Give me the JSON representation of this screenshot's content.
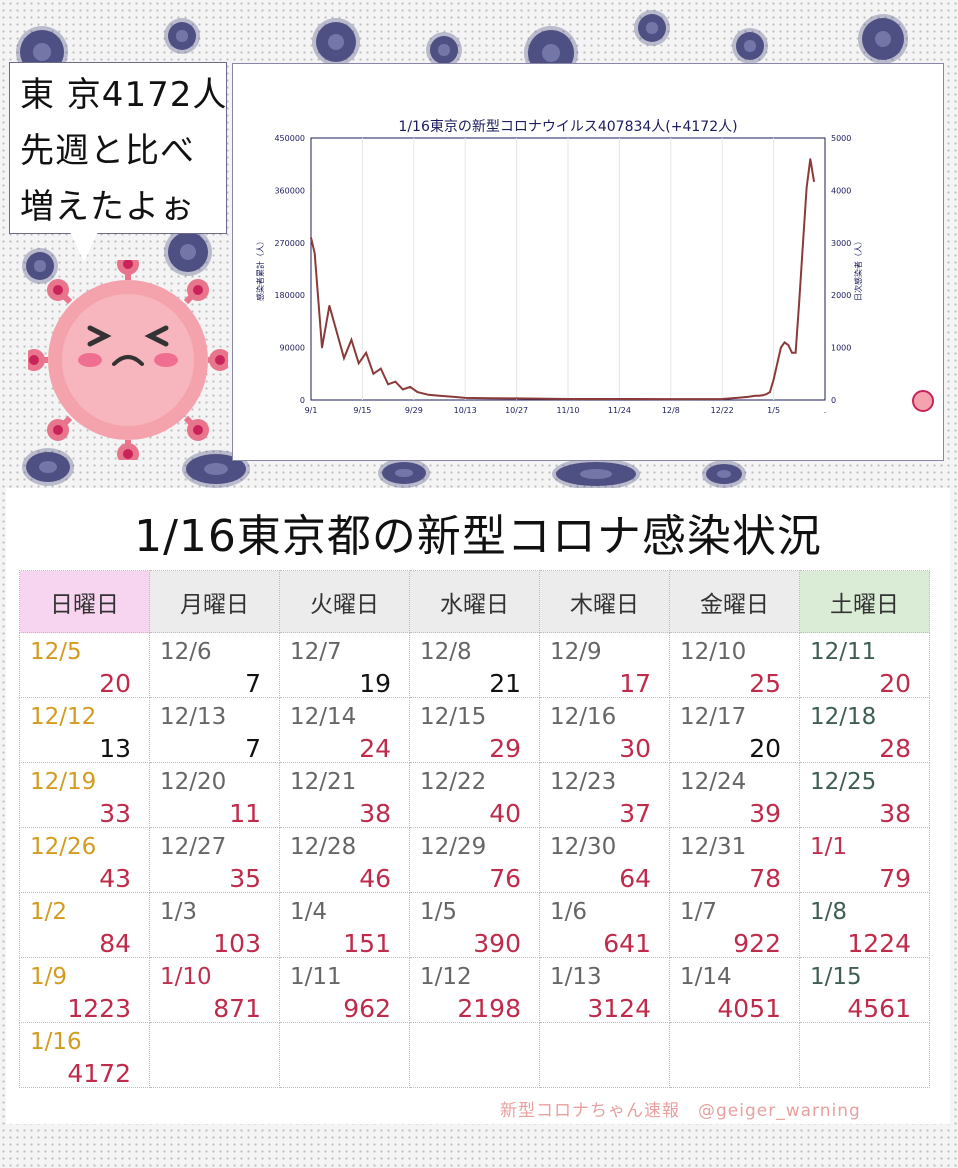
{
  "bubble": {
    "text": "東 京4172人\n先週と比べ\n増えたよぉ"
  },
  "chart_data": {
    "type": "line",
    "title": "1/16東京の新型コロナウイルス407834人(+4172人)",
    "ylabel_left": "感染者累計（人）",
    "ylabel_right": "日次感染者（人）",
    "left_ticks": [
      "0",
      "90000",
      "180000",
      "270000",
      "360000",
      "450000"
    ],
    "right_ticks": [
      "0",
      "1000",
      "2000",
      "3000",
      "4000",
      "5000"
    ],
    "x_ticks": [
      "9/1",
      "9/15",
      "9/29",
      "10/13",
      "10/27",
      "11/10",
      "11/24",
      "12/8",
      "12/22",
      "1/5",
      "."
    ],
    "ylim_right": [
      0,
      5000
    ],
    "series": [
      {
        "x": [
          "9/1",
          "9/2",
          "9/4",
          "9/6",
          "9/8",
          "9/10",
          "9/12",
          "9/14",
          "9/16",
          "9/18",
          "9/20",
          "9/22",
          "9/24",
          "9/26",
          "9/28",
          "9/30",
          "10/3",
          "10/6",
          "10/10",
          "10/13",
          "10/20",
          "10/27",
          "11/10",
          "11/24",
          "12/8",
          "12/22",
          "12/26",
          "12/29",
          "12/31",
          "1/1",
          "1/2",
          "1/3",
          "1/4",
          "1/5",
          "1/6",
          "1/7",
          "1/8",
          "1/9",
          "1/10",
          "1/11",
          "1/12",
          "1/13",
          "1/14",
          "1/15",
          "1/16"
        ],
        "y": [
          3100,
          2800,
          1000,
          1800,
          1300,
          800,
          1150,
          700,
          900,
          500,
          600,
          300,
          350,
          200,
          250,
          150,
          100,
          80,
          60,
          40,
          35,
          30,
          20,
          20,
          18,
          20,
          40,
          60,
          80,
          80,
          90,
          110,
          150,
          390,
          700,
          1000,
          1100,
          1050,
          900,
          900,
          1900,
          3000,
          4050,
          4600,
          4172
        ]
      }
    ]
  },
  "table": {
    "title": "1/16東京都の新型コロナ感染状況",
    "headers": [
      "日曜日",
      "月曜日",
      "火曜日",
      "水曜日",
      "木曜日",
      "金曜日",
      "土曜日"
    ],
    "rows": [
      [
        {
          "d": "12/5",
          "n": "20"
        },
        {
          "d": "12/6",
          "n": "7"
        },
        {
          "d": "12/7",
          "n": "19"
        },
        {
          "d": "12/8",
          "n": "21"
        },
        {
          "d": "12/9",
          "n": "17"
        },
        {
          "d": "12/10",
          "n": "25"
        },
        {
          "d": "12/11",
          "n": "20"
        }
      ],
      [
        {
          "d": "12/12",
          "n": "13"
        },
        {
          "d": "12/13",
          "n": "7"
        },
        {
          "d": "12/14",
          "n": "24"
        },
        {
          "d": "12/15",
          "n": "29"
        },
        {
          "d": "12/16",
          "n": "30"
        },
        {
          "d": "12/17",
          "n": "20"
        },
        {
          "d": "12/18",
          "n": "28"
        }
      ],
      [
        {
          "d": "12/19",
          "n": "33"
        },
        {
          "d": "12/20",
          "n": "11"
        },
        {
          "d": "12/21",
          "n": "38"
        },
        {
          "d": "12/22",
          "n": "40"
        },
        {
          "d": "12/23",
          "n": "37"
        },
        {
          "d": "12/24",
          "n": "39"
        },
        {
          "d": "12/25",
          "n": "38"
        }
      ],
      [
        {
          "d": "12/26",
          "n": "43"
        },
        {
          "d": "12/27",
          "n": "35"
        },
        {
          "d": "12/28",
          "n": "46"
        },
        {
          "d": "12/29",
          "n": "76"
        },
        {
          "d": "12/30",
          "n": "64"
        },
        {
          "d": "12/31",
          "n": "78"
        },
        {
          "d": "1/1",
          "n": "79"
        }
      ],
      [
        {
          "d": "1/2",
          "n": "84"
        },
        {
          "d": "1/3",
          "n": "103"
        },
        {
          "d": "1/4",
          "n": "151"
        },
        {
          "d": "1/5",
          "n": "390"
        },
        {
          "d": "1/6",
          "n": "641"
        },
        {
          "d": "1/7",
          "n": "922"
        },
        {
          "d": "1/8",
          "n": "1224"
        }
      ],
      [
        {
          "d": "1/9",
          "n": "1223"
        },
        {
          "d": "1/10",
          "n": "871"
        },
        {
          "d": "1/11",
          "n": "962"
        },
        {
          "d": "1/12",
          "n": "2198"
        },
        {
          "d": "1/13",
          "n": "3124"
        },
        {
          "d": "1/14",
          "n": "4051"
        },
        {
          "d": "1/15",
          "n": "4561"
        }
      ],
      [
        {
          "d": "1/16",
          "n": "4172"
        },
        {
          "d": "",
          "n": ""
        },
        {
          "d": "",
          "n": ""
        },
        {
          "d": "",
          "n": ""
        },
        {
          "d": "",
          "n": ""
        },
        {
          "d": "",
          "n": ""
        },
        {
          "d": "",
          "n": ""
        }
      ]
    ],
    "black_numbers": [
      "12/6",
      "12/7",
      "12/8",
      "12/12",
      "12/13",
      "12/17"
    ],
    "holiday_dates": [
      "1/1",
      "1/10"
    ]
  },
  "credit": "新型コロナちゃん速報　@geiger_warning",
  "colors": {
    "line": "#8b3a3a",
    "accent": "#bf2b4a",
    "sunday": "#d39b1f"
  }
}
